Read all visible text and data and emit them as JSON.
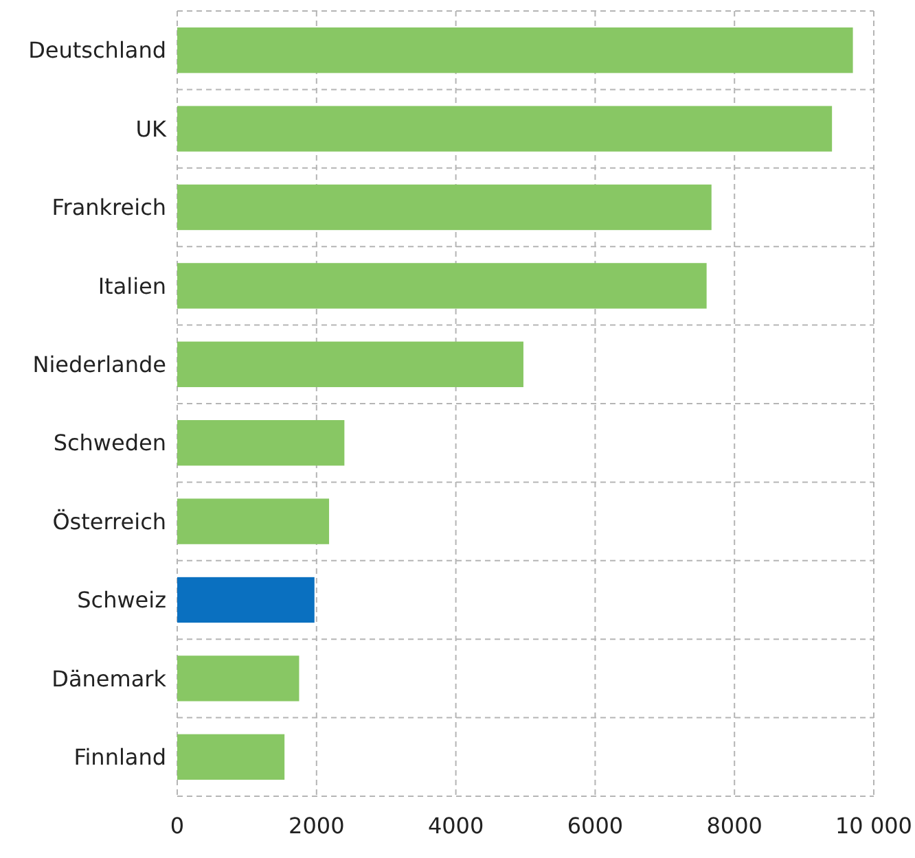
{
  "chart_data": {
    "type": "bar",
    "orientation": "horizontal",
    "categories": [
      "Deutschland",
      "UK",
      "Frankreich",
      "Italien",
      "Niederlande",
      "Schweden",
      "Österreich",
      "Schweiz",
      "Dänemark",
      "Finnland"
    ],
    "values": [
      9700,
      9400,
      7670,
      7600,
      4970,
      2400,
      2180,
      1970,
      1750,
      1540
    ],
    "colors": [
      "#88c764",
      "#88c764",
      "#88c764",
      "#88c764",
      "#88c764",
      "#88c764",
      "#88c764",
      "#0a70c0",
      "#88c764",
      "#88c764"
    ],
    "xlim": [
      0,
      10000
    ],
    "xticks": [
      0,
      2000,
      4000,
      6000,
      8000,
      {
        "value": 10000,
        "label": "10 000"
      }
    ],
    "grid": true
  }
}
